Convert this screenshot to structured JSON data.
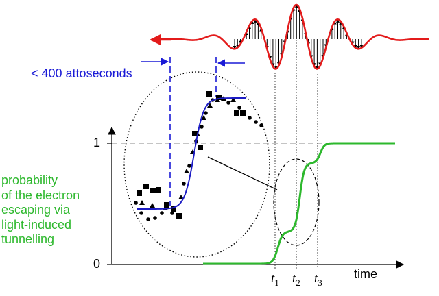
{
  "diagram": {
    "title_annotation": "< 400 attoseconds",
    "axis": {
      "y_ticks": [
        "1",
        "0"
      ],
      "x_label": "time"
    },
    "time_markers": [
      {
        "letter": "t",
        "sub": "1"
      },
      {
        "letter": "t",
        "sub": "2"
      },
      {
        "letter": "t",
        "sub": "3"
      }
    ],
    "probability_label": [
      "probability",
      "of the electron",
      "escaping via",
      "light-induced",
      "tunnelling"
    ],
    "colors": {
      "pulse": "#e31b1b",
      "step_curve": "#2db82d",
      "fit_curve": "#1c1cc4",
      "annotation": "#1a1ad6"
    }
  }
}
